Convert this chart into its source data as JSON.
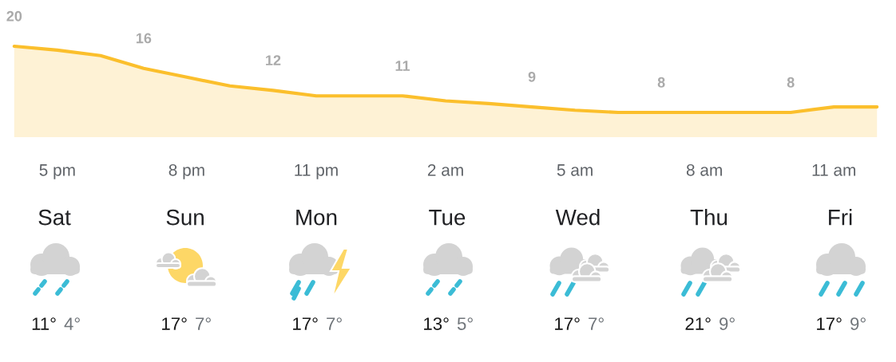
{
  "chart_data": [
    {
      "type": "area",
      "categories": [
        null,
        "5 pm",
        null,
        null,
        "8 pm",
        null,
        null,
        "11 pm",
        null,
        null,
        "2 am",
        null,
        null,
        "5 am",
        null,
        null,
        "8 am",
        null,
        null,
        "11 am",
        null
      ],
      "series": [
        {
          "color": "#fbbf2c",
          "values": [
            20,
            19.3,
            18.3,
            16,
            14.4,
            12.8,
            12,
            11,
            11,
            11,
            10.1,
            9.6,
            9,
            8.4,
            8,
            8,
            8,
            8,
            8,
            9,
            9
          ],
          "value_labels": [
            "20",
            null,
            null,
            "16",
            null,
            null,
            "12",
            null,
            null,
            "11",
            null,
            null,
            "9",
            null,
            null,
            "8",
            null,
            null,
            "8",
            null,
            null
          ]
        }
      ],
      "tick_labels": "x"
    },
    {
      "type": "other",
      "categories": [
        "Sat",
        "Sun",
        "Mon",
        "Tue",
        "Wed",
        "Thu",
        "Fri"
      ],
      "series": [
        {
          "color": "#1a1a1a",
          "values": [
            11,
            17,
            17,
            13,
            17,
            21,
            17
          ],
          "value_labels": [
            "11°",
            "17°",
            "17°",
            "13°",
            "17°",
            "21°",
            "17°"
          ]
        },
        {
          "color": "#70757a",
          "values": [
            4,
            7,
            7,
            5,
            7,
            9,
            9
          ],
          "value_labels": [
            "4°",
            "7°",
            "7°",
            "5°",
            "7°",
            "9°",
            "9°"
          ]
        }
      ]
    }
  ]
}
